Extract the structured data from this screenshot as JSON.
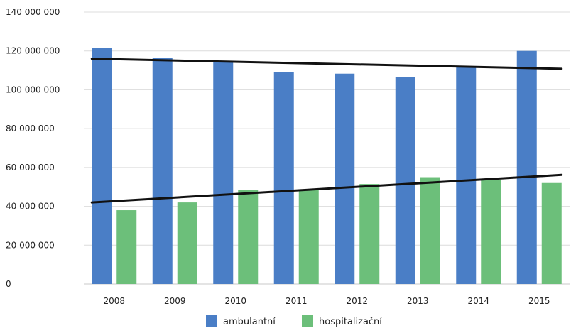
{
  "chart_data": {
    "type": "bar",
    "title": "",
    "xlabel": "",
    "ylabel": "",
    "categories": [
      "2008",
      "2009",
      "2010",
      "2011",
      "2012",
      "2013",
      "2014",
      "2015"
    ],
    "ylim": [
      0,
      140000000
    ],
    "yticks": [
      0,
      20000000,
      40000000,
      60000000,
      80000000,
      100000000,
      120000000,
      140000000
    ],
    "ytick_labels": [
      "0",
      "20 000 000",
      "40 000 000",
      "60 000 000",
      "80 000 000",
      "100 000 000",
      "120 000 000",
      "140 000 000"
    ],
    "grid": true,
    "legend_position": "bottom",
    "series": [
      {
        "name": "ambulantní",
        "color": "#4a7ec6",
        "values": [
          121500000,
          116500000,
          114500000,
          109000000,
          108300000,
          106500000,
          111500000,
          120000000
        ]
      },
      {
        "name": "hospitalizační",
        "color": "#6cbf7a",
        "values": [
          38000000,
          42000000,
          48500000,
          48500000,
          51500000,
          55000000,
          53700000,
          52000000
        ]
      }
    ],
    "trendlines": [
      {
        "series": "ambulantní",
        "color": "#111111",
        "start": 116000000,
        "end": 110800000
      },
      {
        "series": "hospitalizační",
        "color": "#111111",
        "start": 42000000,
        "end": 56200000
      }
    ]
  }
}
